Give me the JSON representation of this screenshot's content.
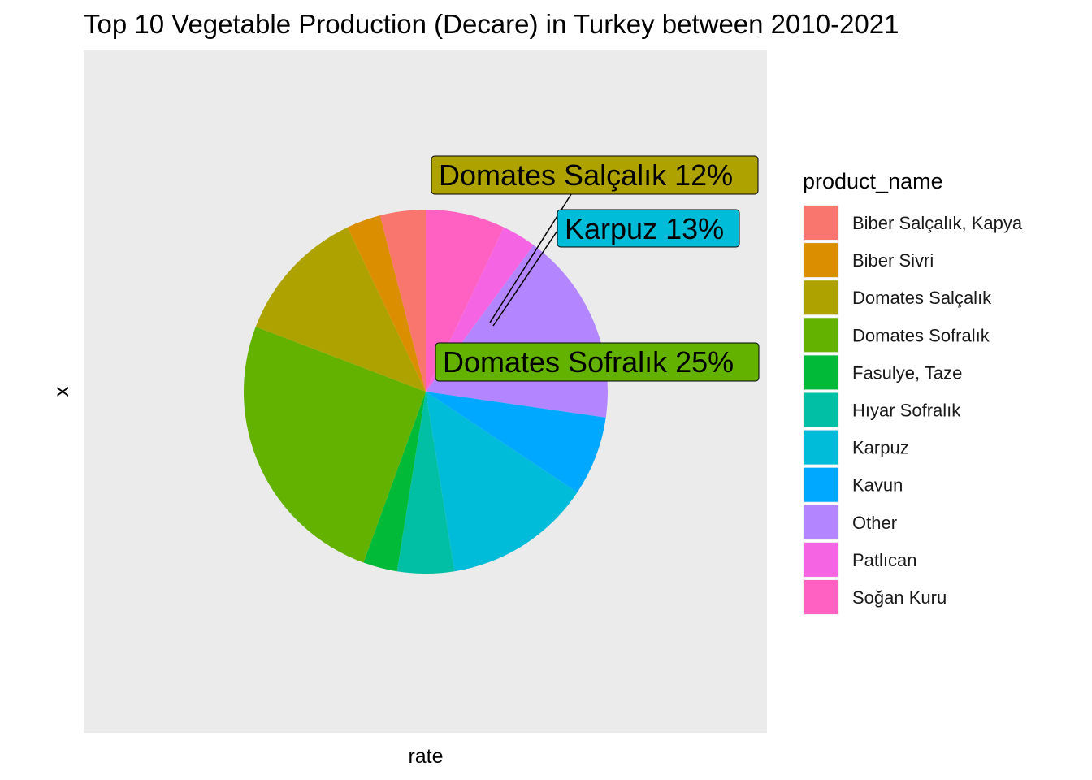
{
  "chart_data": {
    "type": "pie",
    "title": "Top 10 Vegetable Production (Decare) in Turkey  between 2010-2021",
    "xlabel": "rate",
    "ylabel": "x",
    "legend_title": "product_name",
    "legend_position": "right",
    "grid": false,
    "slices": [
      {
        "name": "Soğan Kuru",
        "value": 7,
        "color": "#FF61C3"
      },
      {
        "name": "Patlıcan",
        "value": 3,
        "color": "#F564E3"
      },
      {
        "name": "Other",
        "value": 17,
        "color": "#B385FF"
      },
      {
        "name": "Kavun",
        "value": 7,
        "color": "#00A9FF"
      },
      {
        "name": "Karpuz",
        "value": 13,
        "color": "#00BCD8"
      },
      {
        "name": "Hıyar Sofralık",
        "value": 5,
        "color": "#00BFA4"
      },
      {
        "name": "Fasulye, Taze",
        "value": 3,
        "color": "#00BA38"
      },
      {
        "name": "Domates Sofralık",
        "value": 25,
        "color": "#64B200"
      },
      {
        "name": "Domates Salçalık",
        "value": 12,
        "color": "#AEA200"
      },
      {
        "name": "Biber Sivri",
        "value": 3,
        "color": "#DB8E00"
      },
      {
        "name": "Biber Salçalık, Kapya",
        "value": 4,
        "color": "#F8766D"
      }
    ],
    "legend_order": [
      "Biber Salçalık, Kapya",
      "Biber Sivri",
      "Domates Salçalık",
      "Domates Sofralık",
      "Fasulye, Taze",
      "Hıyar Sofralık",
      "Karpuz",
      "Kavun",
      "Other",
      "Patlıcan",
      "Soğan Kuru"
    ],
    "callouts": [
      {
        "slice": "Domates Salçalık",
        "text": "Domates Salçalık 12%",
        "color": "#AEA200"
      },
      {
        "slice": "Karpuz",
        "text": "Karpuz 13%",
        "color": "#00BCD8"
      },
      {
        "slice": "Domates Sofralık",
        "text": "Domates Sofralık 25%",
        "color": "#64B200"
      }
    ]
  }
}
